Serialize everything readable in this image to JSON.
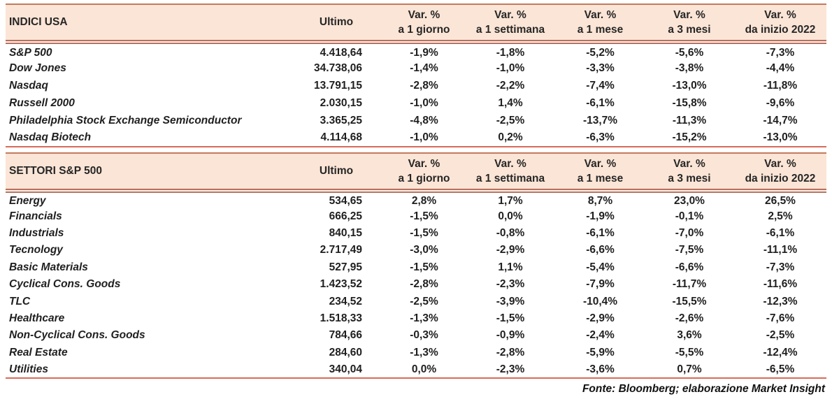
{
  "colors": {
    "header_bg": "#fbe5d6",
    "rule_top": "#c37a5e",
    "rule_double": "#b8705f",
    "rule_bottom": "#d96b5a",
    "text": "#1f1f1f"
  },
  "tables": [
    {
      "title": "INDICI USA",
      "ultimo_label": "Ultimo",
      "var_headers": [
        {
          "line1": "Var. %",
          "line2": "a 1 giorno"
        },
        {
          "line1": "Var. %",
          "line2": "a 1 settimana"
        },
        {
          "line1": "Var. %",
          "line2": "a 1 mese"
        },
        {
          "line1": "Var. %",
          "line2": "a 3 mesi"
        },
        {
          "line1": "Var. %",
          "line2": "da inizio 2022"
        }
      ],
      "rows": [
        {
          "name": "S&P 500",
          "ultimo": "4.418,64",
          "vars": [
            "-1,9%",
            "-1,8%",
            "-5,2%",
            "-5,6%",
            "-7,3%"
          ]
        },
        {
          "name": "Dow Jones",
          "ultimo": "34.738,06",
          "vars": [
            "-1,4%",
            "-1,0%",
            "-3,3%",
            "-3,8%",
            "-4,4%"
          ]
        },
        {
          "name": "Nasdaq",
          "ultimo": "13.791,15",
          "vars": [
            "-2,8%",
            "-2,2%",
            "-7,4%",
            "-13,0%",
            "-11,8%"
          ]
        },
        {
          "name": "Russell 2000",
          "ultimo": "2.030,15",
          "vars": [
            "-1,0%",
            "1,4%",
            "-6,1%",
            "-15,8%",
            "-9,6%"
          ]
        },
        {
          "name": "Philadelphia Stock Exchange Semiconductor",
          "ultimo": "3.365,25",
          "vars": [
            "-4,8%",
            "-2,5%",
            "-13,7%",
            "-11,3%",
            "-14,7%"
          ]
        },
        {
          "name": "Nasdaq Biotech",
          "ultimo": "4.114,68",
          "vars": [
            "-1,0%",
            "0,2%",
            "-6,3%",
            "-15,2%",
            "-13,0%"
          ]
        }
      ]
    },
    {
      "title": "SETTORI S&P 500",
      "ultimo_label": "Ultimo",
      "var_headers": [
        {
          "line1": "Var. %",
          "line2": "a 1 giorno"
        },
        {
          "line1": "Var. %",
          "line2": "a 1 settimana"
        },
        {
          "line1": "Var. %",
          "line2": "a 1 mese"
        },
        {
          "line1": "Var. %",
          "line2": "a 3 mesi"
        },
        {
          "line1": "Var. %",
          "line2": "da inizio 2022"
        }
      ],
      "rows": [
        {
          "name": "Energy",
          "ultimo": "534,65",
          "vars": [
            "2,8%",
            "1,7%",
            "8,7%",
            "23,0%",
            "26,5%"
          ]
        },
        {
          "name": "Financials",
          "ultimo": "666,25",
          "vars": [
            "-1,5%",
            "0,0%",
            "-1,9%",
            "-0,1%",
            "2,5%"
          ]
        },
        {
          "name": "Industrials",
          "ultimo": "840,15",
          "vars": [
            "-1,5%",
            "-0,8%",
            "-6,1%",
            "-7,0%",
            "-6,1%"
          ]
        },
        {
          "name": "Tecnology",
          "ultimo": "2.717,49",
          "vars": [
            "-3,0%",
            "-2,9%",
            "-6,6%",
            "-7,5%",
            "-11,1%"
          ]
        },
        {
          "name": "Basic Materials",
          "ultimo": "527,95",
          "vars": [
            "-1,5%",
            "1,1%",
            "-5,4%",
            "-6,6%",
            "-7,3%"
          ]
        },
        {
          "name": "Cyclical Cons. Goods",
          "ultimo": "1.423,52",
          "vars": [
            "-2,8%",
            "-2,3%",
            "-7,9%",
            "-11,7%",
            "-11,6%"
          ]
        },
        {
          "name": "TLC",
          "ultimo": "234,52",
          "vars": [
            "-2,5%",
            "-3,9%",
            "-10,4%",
            "-15,5%",
            "-12,3%"
          ]
        },
        {
          "name": "Healthcare",
          "ultimo": "1.518,33",
          "vars": [
            "-1,3%",
            "-1,5%",
            "-2,9%",
            "-2,6%",
            "-7,6%"
          ]
        },
        {
          "name": "Non-Cyclical Cons. Goods",
          "ultimo": "784,66",
          "vars": [
            "-0,3%",
            "-0,9%",
            "-2,4%",
            "3,6%",
            "-2,5%"
          ]
        },
        {
          "name": "Real Estate",
          "ultimo": "284,60",
          "vars": [
            "-1,3%",
            "-2,8%",
            "-5,9%",
            "-5,5%",
            "-12,4%"
          ]
        },
        {
          "name": "Utilities",
          "ultimo": "340,04",
          "vars": [
            "0,0%",
            "-2,3%",
            "-3,6%",
            "0,7%",
            "-6,5%"
          ]
        }
      ]
    }
  ],
  "footer": {
    "source_note": "Fonte: Bloomberg; elaborazione Market Insight"
  }
}
